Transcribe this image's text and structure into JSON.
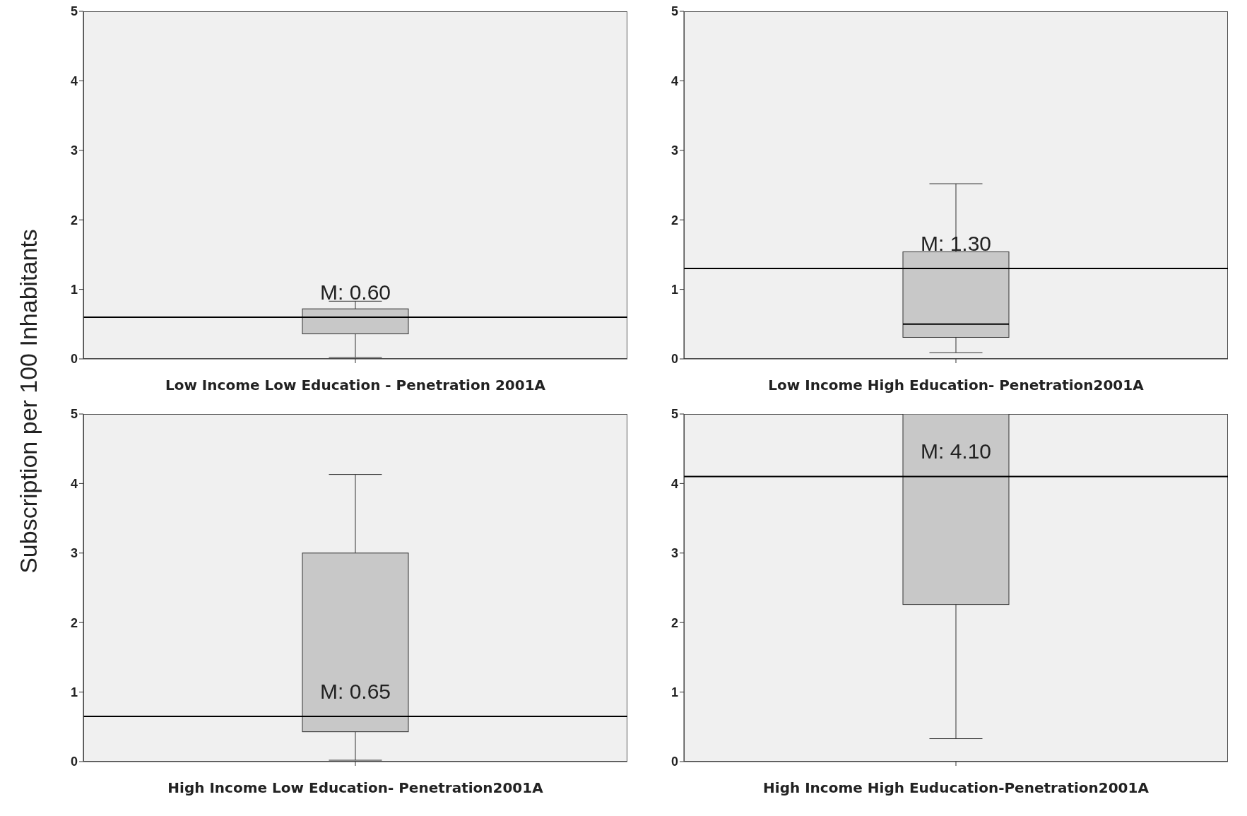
{
  "chart_data": [
    {
      "type": "box",
      "ylabel": "Subscription per 100 Inhabitants",
      "xlabel": "Low Income Low Education - Penetration 2001A",
      "categories": [
        null
      ],
      "series": [
        {
          "color": "#c8c8c8",
          "boxes": [
            {
              "low": 0.02,
              "q1": 0.36,
              "median": null,
              "q3": 0.72,
              "high": 0.83
            }
          ]
        }
      ],
      "ylim": [
        0,
        5
      ],
      "yticks": [
        0,
        1,
        2,
        3,
        4,
        5
      ],
      "ref_lines": [
        {
          "axis": "y",
          "value": 0.6,
          "label": "M: 0.60",
          "color": "#000000"
        }
      ]
    },
    {
      "type": "box",
      "xlabel": "Low Income High Education- Penetration2001A",
      "categories": [
        null
      ],
      "series": [
        {
          "color": "#c8c8c8",
          "boxes": [
            {
              "low": 0.09,
              "q1": 0.31,
              "median": 0.5,
              "q3": 1.54,
              "high": 2.52
            }
          ]
        }
      ],
      "ylim": [
        0,
        5
      ],
      "yticks": [
        0,
        1,
        2,
        3,
        4,
        5
      ],
      "ref_lines": [
        {
          "axis": "y",
          "value": 1.3,
          "label": "M: 1.30",
          "color": "#000000"
        }
      ]
    },
    {
      "type": "box",
      "xlabel": "High Income Low Education- Penetration2001A",
      "categories": [
        null
      ],
      "series": [
        {
          "color": "#c8c8c8",
          "boxes": [
            {
              "low": 0.02,
              "q1": 0.43,
              "median": null,
              "q3": 3.0,
              "high": 4.13
            }
          ]
        }
      ],
      "ylim": [
        0,
        5
      ],
      "yticks": [
        0,
        1,
        2,
        3,
        4,
        5
      ],
      "ref_lines": [
        {
          "axis": "y",
          "value": 0.65,
          "label": "M: 0.65",
          "color": "#000000"
        }
      ]
    },
    {
      "type": "box",
      "xlabel": "High Income High Euducation-Penetration2001A",
      "categories": [
        null
      ],
      "series": [
        {
          "color": "#c8c8c8",
          "boxes": [
            {
              "low": 0.33,
              "q1": 2.26,
              "median": null,
              "q3": 5,
              "high": 5
            }
          ]
        }
      ],
      "ylim": [
        0,
        5
      ],
      "yticks": [
        0,
        1,
        2,
        3,
        4,
        5
      ],
      "ref_lines": [
        {
          "axis": "y",
          "value": 4.1,
          "label": "M: 4.10",
          "color": "#000000"
        }
      ]
    }
  ]
}
